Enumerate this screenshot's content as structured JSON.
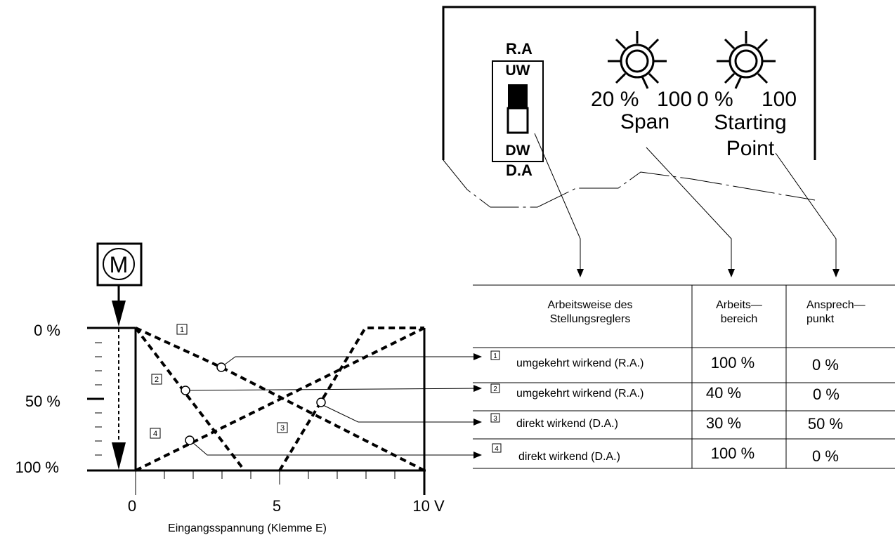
{
  "panel": {
    "switch_top_label": "R.A",
    "switch_upper": "UW",
    "switch_lower": "DW",
    "switch_bottom_label": "D.A",
    "span_scale_min": "20 %",
    "span_scale_max": "100",
    "span_label": "Span",
    "start_scale_min": "0  %",
    "start_scale_max": "100",
    "start_label_line1": "Starting",
    "start_label_line2": "Point"
  },
  "table": {
    "header_col1_line1": "Arbeitsweise des",
    "header_col1_line2": "Stellungsreglers",
    "header_col2_line1": "Arbeits—",
    "header_col2_line2": "bereich",
    "header_col3_line1": "Ansprech—",
    "header_col3_line2": "punkt",
    "rows": [
      {
        "num": "1",
        "mode": "umgekehrt wirkend (R.A.)",
        "range": "100 %",
        "start": "0 %"
      },
      {
        "num": "2",
        "mode": "umgekehrt wirkend (R.A.)",
        "range": "40 %",
        "start": "0 %"
      },
      {
        "num": "3",
        "mode": "direkt wirkend (D.A.)",
        "range": "30 %",
        "start": "50 %"
      },
      {
        "num": "4",
        "mode": "direkt wirkend (D.A.)",
        "range": "100 %",
        "start": "0 %"
      }
    ]
  },
  "graph": {
    "motor_label": "M",
    "y_ticks": [
      "0 %",
      "50 %",
      "100 %"
    ],
    "x_ticks": [
      "0",
      "5",
      "10 V"
    ],
    "x_label": "Eingangsspannung (Klemme E)",
    "curve_labels": [
      "1",
      "2",
      "3",
      "4"
    ]
  }
}
